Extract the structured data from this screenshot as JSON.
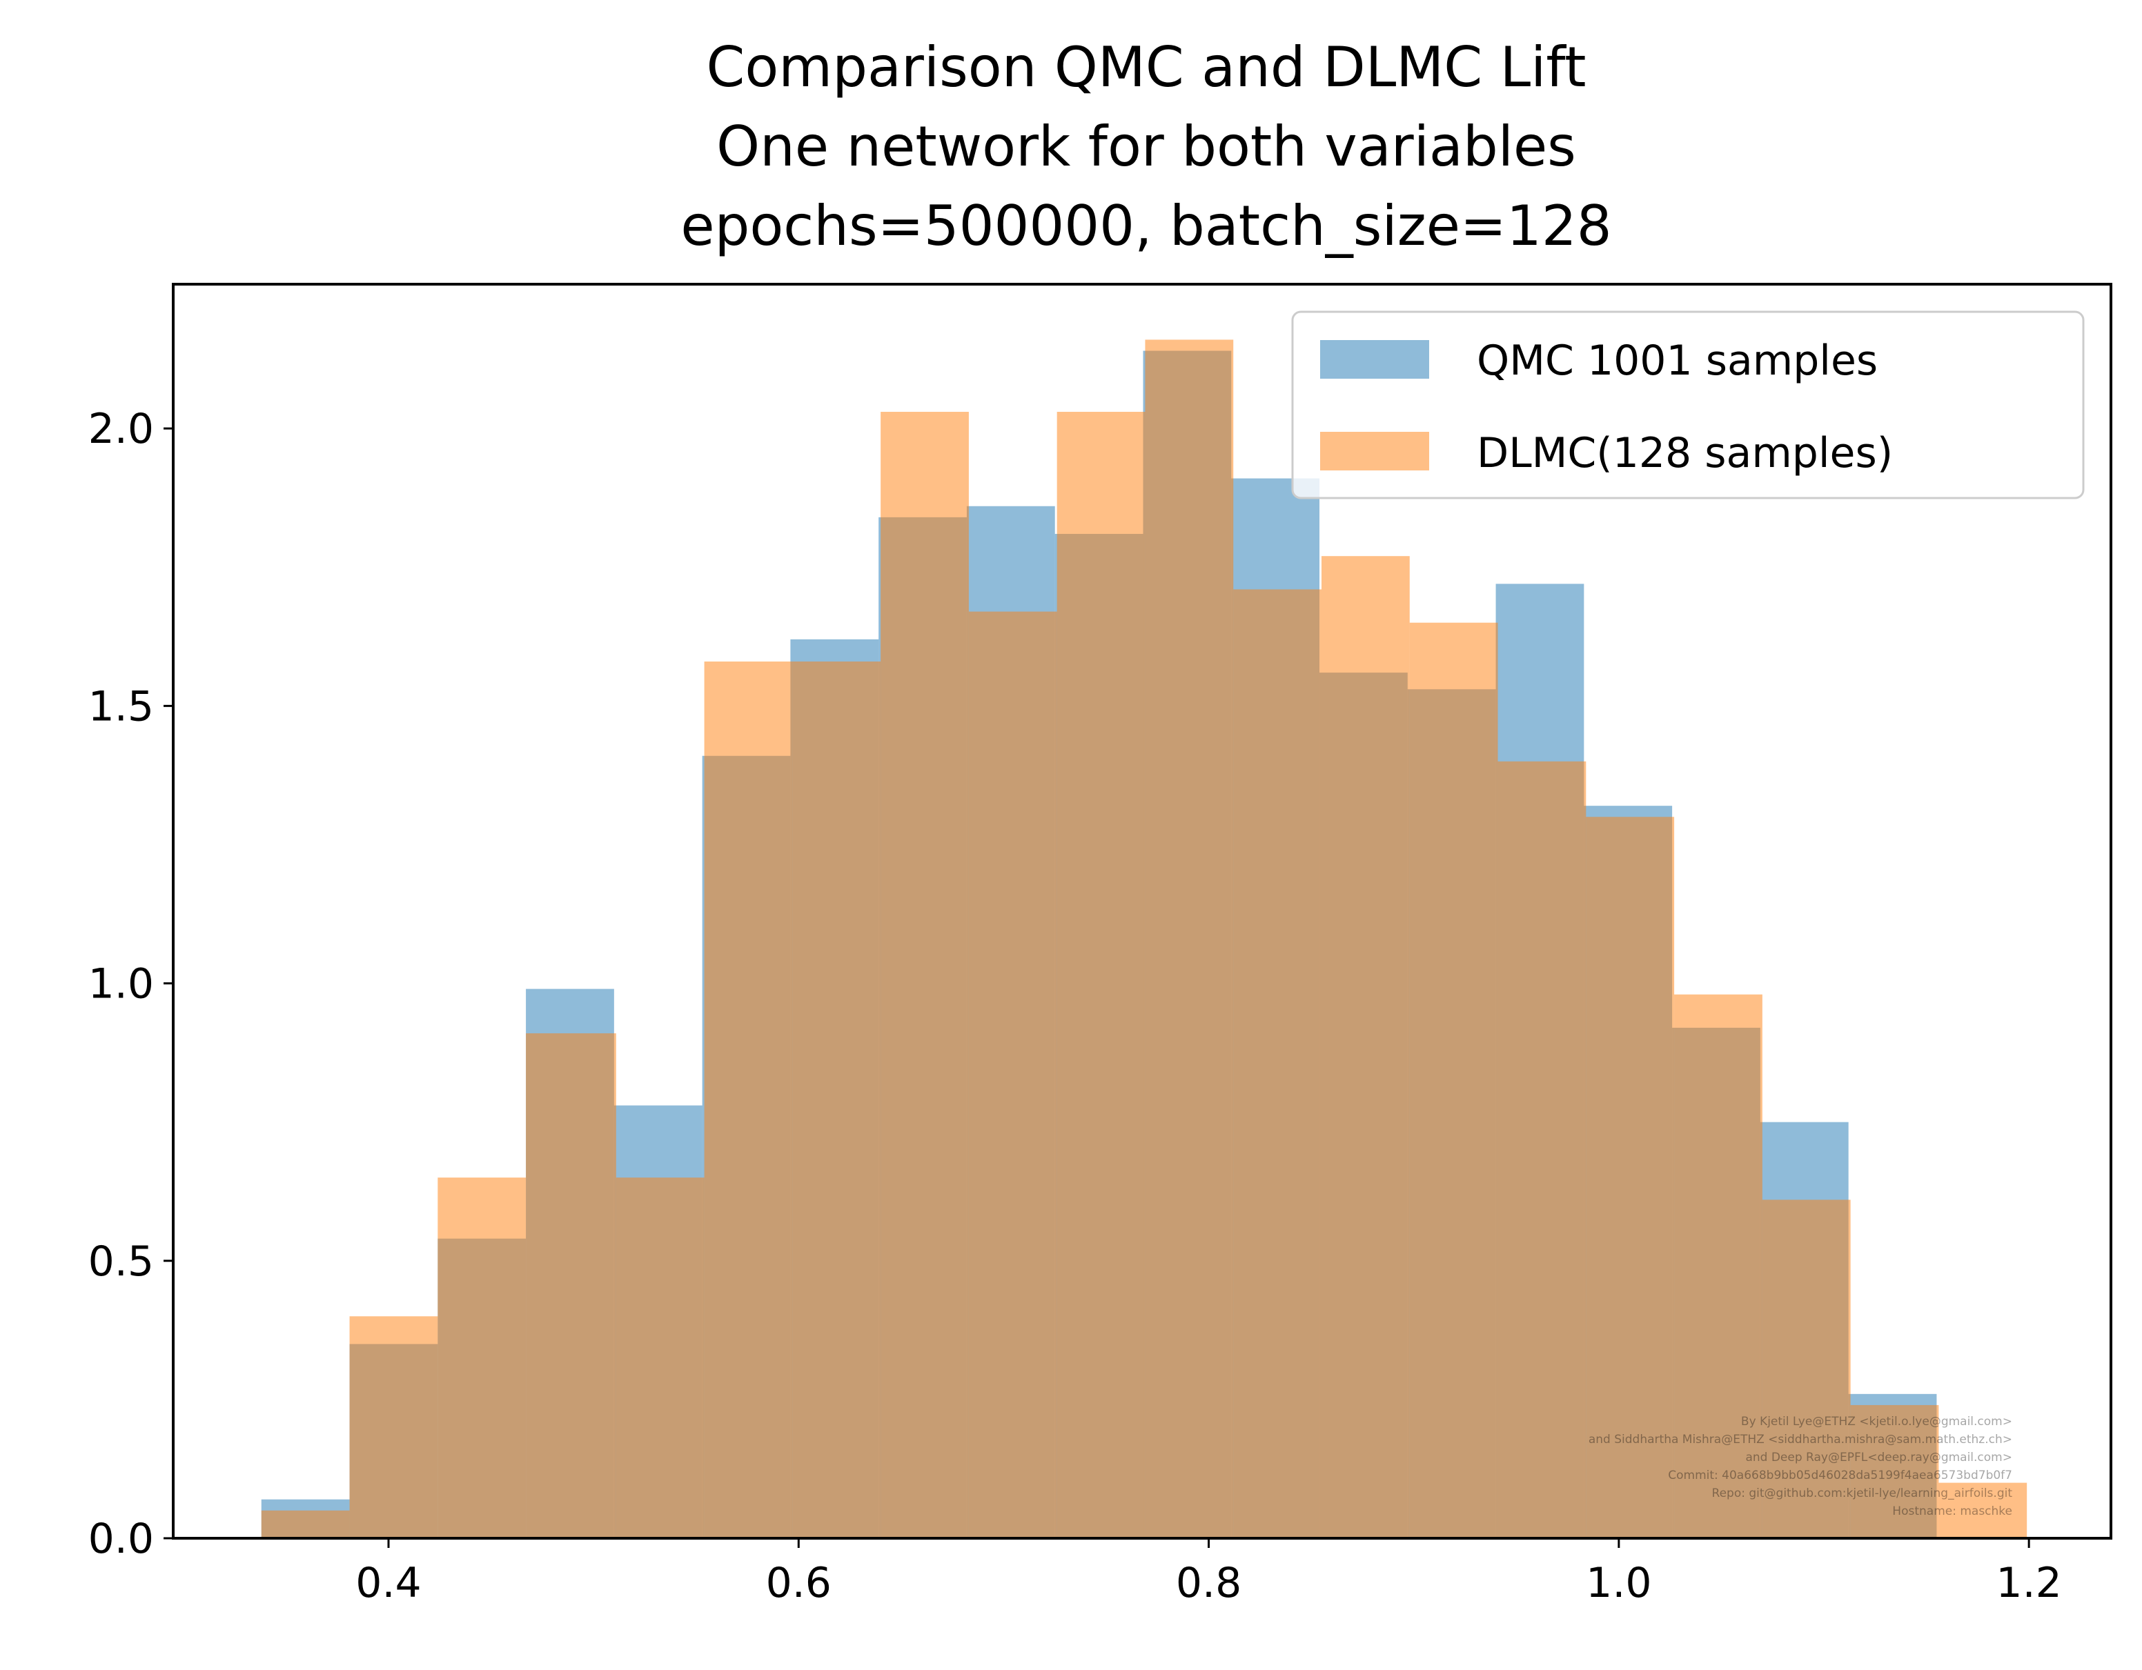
{
  "chart_data": {
    "type": "bar",
    "subtype": "histogram",
    "title_lines": [
      "Comparison QMC and DLMC Lift",
      "One network for both variables",
      "epochs=500000, batch_size=128"
    ],
    "xlabel": "",
    "ylabel": "",
    "xlim": [
      0.295,
      1.24
    ],
    "ylim": [
      0,
      2.26
    ],
    "x_ticks": [
      0.4,
      0.6,
      0.8,
      1.0,
      1.2
    ],
    "x_tick_labels": [
      "0.4",
      "0.6",
      "0.8",
      "1.0",
      "1.2"
    ],
    "y_ticks": [
      0.0,
      0.5,
      1.0,
      1.5,
      2.0
    ],
    "y_tick_labels": [
      "0.0",
      "0.5",
      "1.0",
      "1.5",
      "2.0"
    ],
    "grid": false,
    "legend_position": "upper right",
    "series": [
      {
        "name": "QMC 1001 samples",
        "color": "#1f77b4",
        "alpha": 0.5,
        "bin_edges": [
          0.338,
          0.381,
          0.424,
          0.467,
          0.51,
          0.553,
          0.596,
          0.639,
          0.682,
          0.725,
          0.768,
          0.811,
          0.854,
          0.897,
          0.94,
          0.983,
          1.026,
          1.069,
          1.112,
          1.155
        ],
        "values": [
          0.07,
          0.35,
          0.54,
          0.99,
          0.78,
          1.41,
          1.62,
          1.84,
          1.86,
          1.81,
          2.14,
          1.91,
          1.56,
          1.53,
          1.72,
          1.32,
          0.92,
          0.75,
          0.26
        ]
      },
      {
        "name": "DLMC(128 samples)",
        "color": "#ff7f0e",
        "alpha": 0.5,
        "bin_edges": [
          0.338,
          0.381,
          0.424,
          0.467,
          0.511,
          0.554,
          0.597,
          0.64,
          0.683,
          0.726,
          0.769,
          0.812,
          0.855,
          0.898,
          0.941,
          0.984,
          1.027,
          1.07,
          1.113,
          1.156,
          1.199
        ],
        "values": [
          0.05,
          0.4,
          0.65,
          0.91,
          0.65,
          1.58,
          1.58,
          2.03,
          1.67,
          2.03,
          2.16,
          1.71,
          1.77,
          1.65,
          1.4,
          1.3,
          0.98,
          0.61,
          0.24,
          0.1
        ]
      }
    ]
  },
  "credits": [
    "By Kjetil Lye@ETHZ <kjetil.o.lye@gmail.com>",
    "and Siddhartha Mishra@ETHZ <siddhartha.mishra@sam.math.ethz.ch>",
    "and Deep Ray@EPFL<deep.ray@gmail.com>",
    "Commit: 40a668b9bb05d46028da5199f4aea6573bd7b0f7",
    "Repo: git@github.com:kjetil-lye/learning_airfoils.git",
    "Hostname: maschke"
  ]
}
